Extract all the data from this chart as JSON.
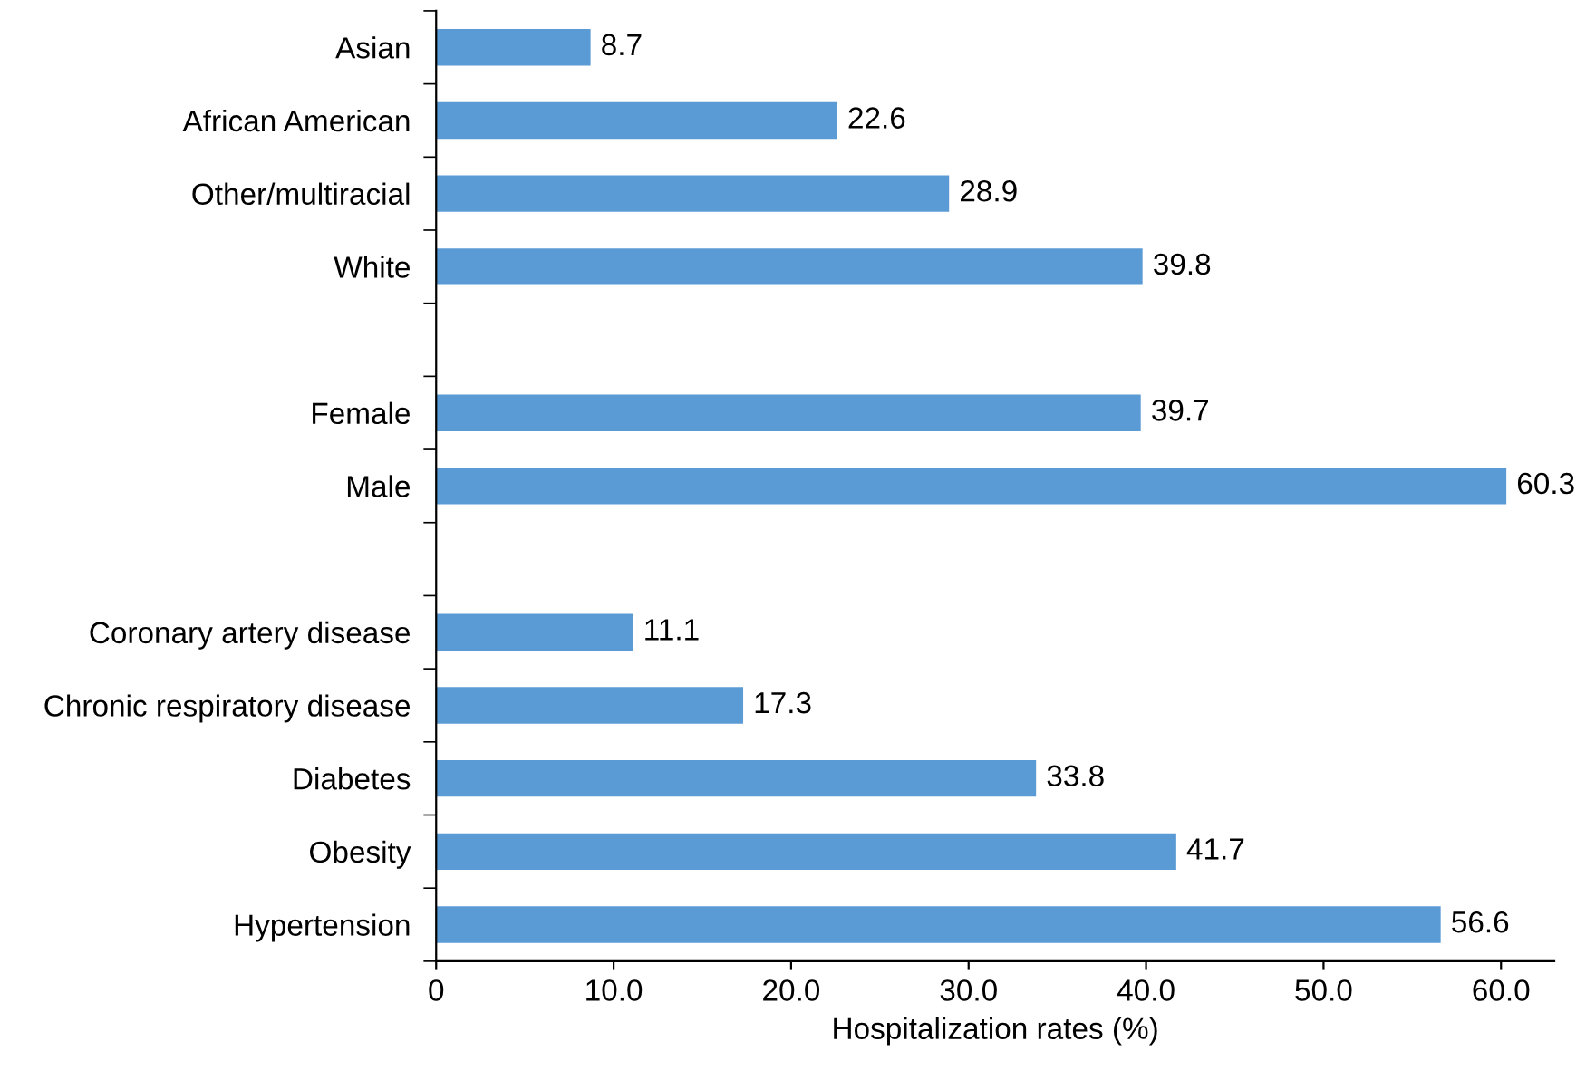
{
  "chart_data": {
    "type": "bar",
    "orientation": "horizontal",
    "xlabel": "Hospitalization rates (%)",
    "categories": [
      "Asian",
      "African American",
      "Other/multiracial",
      "White",
      null,
      "Female",
      "Male",
      null,
      "Coronary artery disease",
      "Chronic respiratory disease",
      "Diabetes",
      "Obesity",
      "Hypertension"
    ],
    "values": [
      8.7,
      22.6,
      28.9,
      39.8,
      null,
      39.7,
      60.3,
      null,
      11.1,
      17.3,
      33.8,
      41.7,
      56.6
    ],
    "color": "#5b9bd5",
    "xlim": [
      0,
      63
    ],
    "xticks": [
      0,
      {
        "value": 10,
        "label": "10.0"
      },
      {
        "value": 20,
        "label": "20.0"
      },
      {
        "value": 30,
        "label": "30.0"
      },
      {
        "value": 40,
        "label": "40.0"
      },
      {
        "value": 50,
        "label": "50.0"
      },
      {
        "value": 60,
        "label": "60.0"
      }
    ],
    "data_labels": true,
    "grid": false,
    "legend": false
  }
}
